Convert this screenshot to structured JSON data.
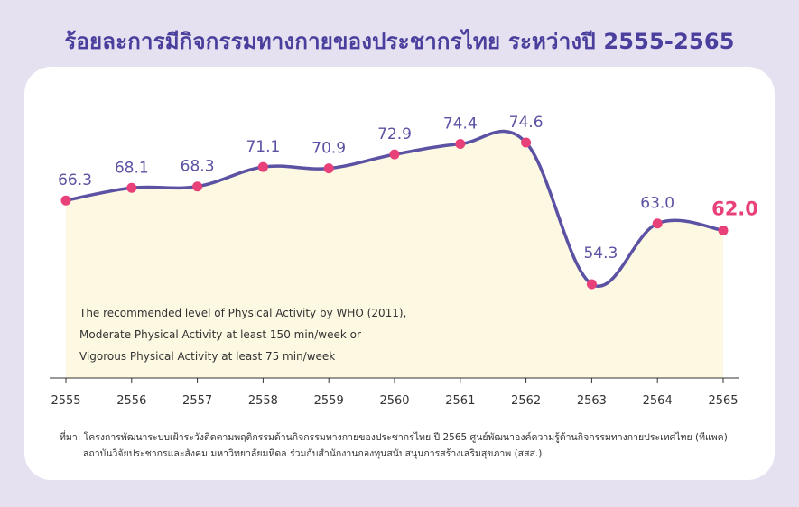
{
  "title": "ร้อยละการมีกิจกรรมทางกายของประชากรไทย ระหว่างปี 2555-2565",
  "note": [
    "The recommended level of Physical Activity by WHO (2011),",
    "Moderate Physical Activity at least 150 min/week or",
    "Vigorous Physical Activity at least 75 min/week"
  ],
  "source": [
    "ที่มา: โครงการพัฒนาระบบเฝ้าระวังติดตามพฤติกรรมด้านกิจกรรมทางกายของประชากรไทย ปี 2565 ศูนย์พัฒนาองค์ความรู้ด้านกิจกรรมทางกายประเทศไทย (ทีแพค)",
    "สถาบันวิจัยประชากรและสังคม มหาวิทยาลัยมหิดล ร่วมกับสำนักงานกองทุนสนับสนุนการสร้างเสริมสุขภาพ (สสส.)"
  ],
  "colors": {
    "background": "#e6e1f1",
    "title": "#4a3f9c",
    "line": "#5b52a3",
    "point": "#e8417a",
    "fill": "#fdf8e2",
    "highlight": "#e8417a"
  },
  "chart_data": {
    "type": "line",
    "categories": [
      "2555",
      "2556",
      "2557",
      "2558",
      "2559",
      "2560",
      "2561",
      "2562",
      "2563",
      "2564",
      "2565"
    ],
    "values": [
      66.3,
      68.1,
      68.3,
      71.1,
      70.9,
      72.9,
      74.4,
      74.6,
      54.3,
      63.0,
      62.0
    ],
    "labels": [
      "66.3",
      "68.1",
      "68.3",
      "71.1",
      "70.9",
      "72.9",
      "74.4",
      "74.6",
      "54.3",
      "63.0",
      "62.0"
    ],
    "highlight_index": 10,
    "smooth": true,
    "area_fill": true,
    "grid": false,
    "legend": "none"
  }
}
